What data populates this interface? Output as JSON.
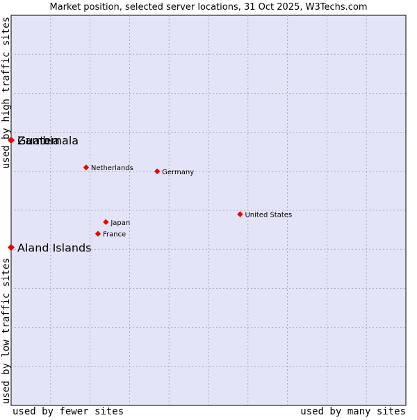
{
  "chart_data": {
    "type": "scatter",
    "title": "Market position, selected server locations, 31 Oct 2025, W3Techs.com",
    "xlabel_left": "used by fewer sites",
    "xlabel_right": "used by many sites",
    "ylabel_bottom": "used by low traffic sites",
    "ylabel_top": "used by high traffic sites",
    "xlim": [
      0,
      10
    ],
    "ylim": [
      0,
      10
    ],
    "grid": true,
    "colors": {
      "plot_bg": "#e4e4f8",
      "grid": "#9a9ab0",
      "marker": "#ee0000",
      "border": "#000000"
    },
    "points": [
      {
        "label": "Zambia",
        "x": 0.0,
        "y": 6.8,
        "emphasis": true
      },
      {
        "label": "Guatemala",
        "x": 0.0,
        "y": 6.8,
        "emphasis": true
      },
      {
        "label": "Aland Islands",
        "x": 0.0,
        "y": 4.05,
        "emphasis": true
      },
      {
        "label": "Netherlands",
        "x": 1.9,
        "y": 6.1,
        "emphasis": false
      },
      {
        "label": "Germany",
        "x": 3.7,
        "y": 6.0,
        "emphasis": false
      },
      {
        "label": "United States",
        "x": 5.8,
        "y": 4.9,
        "emphasis": false
      },
      {
        "label": "Japan",
        "x": 2.4,
        "y": 4.7,
        "emphasis": false
      },
      {
        "label": "France",
        "x": 2.2,
        "y": 4.4,
        "emphasis": false
      }
    ]
  }
}
